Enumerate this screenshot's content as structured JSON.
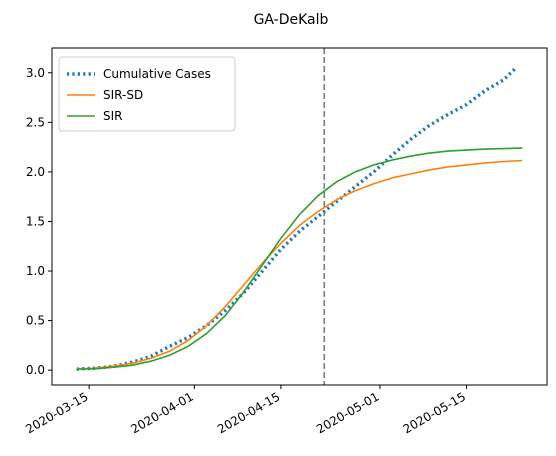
{
  "chart_data": {
    "type": "line",
    "title": "GA-DeKalb",
    "xlabel": "",
    "ylabel": "",
    "x_axis": {
      "type": "date",
      "range": [
        "2020-03-09",
        "2020-05-28"
      ],
      "ticks": [
        "2020-03-15",
        "2020-04-01",
        "2020-04-15",
        "2020-05-01",
        "2020-05-15"
      ]
    },
    "y_axis": {
      "range": [
        -0.15,
        3.25
      ],
      "ticks": [
        0.0,
        0.5,
        1.0,
        1.5,
        2.0,
        2.5,
        3.0
      ],
      "tick_labels": [
        "0.0",
        "0.5",
        "1.0",
        "1.5",
        "2.0",
        "2.5",
        "3.0"
      ]
    },
    "vertical_line": {
      "x": "2020-04-22",
      "color": "#7f7f7f",
      "style": "dashed"
    },
    "grid": false,
    "legend": {
      "placement": "top-left"
    },
    "series": [
      {
        "name": "Cumulative Cases",
        "color": "#1f77b4",
        "style": "dotted",
        "points": [
          [
            "2020-03-13",
            0.01
          ],
          [
            "2020-03-16",
            0.02
          ],
          [
            "2020-03-19",
            0.04
          ],
          [
            "2020-03-22",
            0.08
          ],
          [
            "2020-03-25",
            0.14
          ],
          [
            "2020-03-28",
            0.24
          ],
          [
            "2020-03-31",
            0.33
          ],
          [
            "2020-04-03",
            0.45
          ],
          [
            "2020-04-06",
            0.6
          ],
          [
            "2020-04-09",
            0.78
          ],
          [
            "2020-04-12",
            1.0
          ],
          [
            "2020-04-15",
            1.22
          ],
          [
            "2020-04-18",
            1.4
          ],
          [
            "2020-04-21",
            1.55
          ],
          [
            "2020-04-24",
            1.7
          ],
          [
            "2020-04-27",
            1.85
          ],
          [
            "2020-04-30",
            2.0
          ],
          [
            "2020-05-03",
            2.17
          ],
          [
            "2020-05-06",
            2.33
          ],
          [
            "2020-05-09",
            2.47
          ],
          [
            "2020-05-12",
            2.58
          ],
          [
            "2020-05-15",
            2.68
          ],
          [
            "2020-05-18",
            2.82
          ],
          [
            "2020-05-21",
            2.93
          ],
          [
            "2020-05-23",
            3.05
          ]
        ]
      },
      {
        "name": "SIR-SD",
        "color": "#ff7f0e",
        "style": "solid",
        "points": [
          [
            "2020-03-13",
            0.01
          ],
          [
            "2020-03-16",
            0.02
          ],
          [
            "2020-03-19",
            0.04
          ],
          [
            "2020-03-22",
            0.07
          ],
          [
            "2020-03-25",
            0.12
          ],
          [
            "2020-03-28",
            0.19
          ],
          [
            "2020-03-31",
            0.3
          ],
          [
            "2020-04-03",
            0.45
          ],
          [
            "2020-04-06",
            0.64
          ],
          [
            "2020-04-09",
            0.86
          ],
          [
            "2020-04-12",
            1.08
          ],
          [
            "2020-04-15",
            1.28
          ],
          [
            "2020-04-18",
            1.46
          ],
          [
            "2020-04-21",
            1.6
          ],
          [
            "2020-04-24",
            1.72
          ],
          [
            "2020-04-27",
            1.81
          ],
          [
            "2020-04-30",
            1.88
          ],
          [
            "2020-05-03",
            1.94
          ],
          [
            "2020-05-06",
            1.98
          ],
          [
            "2020-05-09",
            2.02
          ],
          [
            "2020-05-12",
            2.05
          ],
          [
            "2020-05-15",
            2.07
          ],
          [
            "2020-05-18",
            2.09
          ],
          [
            "2020-05-21",
            2.105
          ],
          [
            "2020-05-24",
            2.115
          ]
        ]
      },
      {
        "name": "SIR",
        "color": "#2ca02c",
        "style": "solid",
        "points": [
          [
            "2020-03-13",
            0.01
          ],
          [
            "2020-03-16",
            0.015
          ],
          [
            "2020-03-19",
            0.03
          ],
          [
            "2020-03-22",
            0.05
          ],
          [
            "2020-03-25",
            0.09
          ],
          [
            "2020-03-28",
            0.15
          ],
          [
            "2020-03-31",
            0.24
          ],
          [
            "2020-04-03",
            0.37
          ],
          [
            "2020-04-06",
            0.55
          ],
          [
            "2020-04-09",
            0.79
          ],
          [
            "2020-04-12",
            1.06
          ],
          [
            "2020-04-15",
            1.33
          ],
          [
            "2020-04-18",
            1.57
          ],
          [
            "2020-04-21",
            1.76
          ],
          [
            "2020-04-24",
            1.9
          ],
          [
            "2020-04-27",
            2.0
          ],
          [
            "2020-04-30",
            2.07
          ],
          [
            "2020-05-03",
            2.12
          ],
          [
            "2020-05-06",
            2.16
          ],
          [
            "2020-05-09",
            2.19
          ],
          [
            "2020-05-12",
            2.21
          ],
          [
            "2020-05-15",
            2.22
          ],
          [
            "2020-05-18",
            2.23
          ],
          [
            "2020-05-21",
            2.235
          ],
          [
            "2020-05-24",
            2.24
          ]
        ]
      }
    ]
  }
}
